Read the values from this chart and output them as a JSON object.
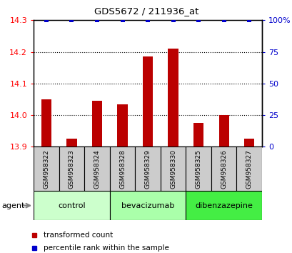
{
  "title": "GDS5672 / 211936_at",
  "samples": [
    "GSM958322",
    "GSM958323",
    "GSM958324",
    "GSM958328",
    "GSM958329",
    "GSM958330",
    "GSM958325",
    "GSM958326",
    "GSM958327"
  ],
  "bar_values": [
    14.05,
    13.925,
    14.045,
    14.035,
    14.185,
    14.21,
    13.975,
    14.0,
    13.925
  ],
  "percentile_values": [
    100,
    100,
    100,
    100,
    100,
    100,
    100,
    100,
    100
  ],
  "ylim": [
    13.9,
    14.3
  ],
  "yticks": [
    13.9,
    14.0,
    14.1,
    14.2,
    14.3
  ],
  "y2ticks": [
    0,
    25,
    50,
    75,
    100
  ],
  "y2labels": [
    "0",
    "25",
    "50",
    "75",
    "100%"
  ],
  "groups": [
    {
      "label": "control",
      "start": 0,
      "end": 2,
      "color": "#ccffcc"
    },
    {
      "label": "bevacizumab",
      "start": 3,
      "end": 5,
      "color": "#aaffaa"
    },
    {
      "label": "dibenzazepine",
      "start": 6,
      "end": 8,
      "color": "#44ee44"
    }
  ],
  "bar_color": "#bb0000",
  "blue_marker_color": "#0000cc",
  "baseline": 13.9,
  "agent_label": "agent",
  "legend_items": [
    {
      "label": "transformed count",
      "color": "#bb0000"
    },
    {
      "label": "percentile rank within the sample",
      "color": "#0000cc"
    }
  ],
  "sample_box_color": "#cccccc",
  "bg_color": "#ffffff"
}
